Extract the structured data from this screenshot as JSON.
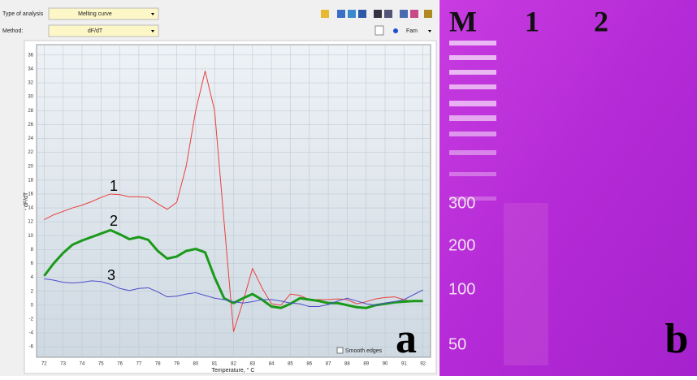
{
  "software": {
    "analysis_label": "Type of analysis",
    "analysis_value": "Melting curve",
    "method_label": "Method:",
    "method_value": "dF/dT",
    "channel": "Fam",
    "smooth_edges": "Smooth edges"
  },
  "chart_data": {
    "type": "line",
    "y_label": "- dF/dT",
    "x_label": "Temperature, ° C",
    "x": [
      72,
      72.5,
      73,
      73.5,
      74,
      74.5,
      75,
      75.5,
      76,
      76.5,
      77,
      77.5,
      78,
      78.5,
      79,
      79.5,
      80,
      80.5,
      81,
      81.5,
      82,
      82.5,
      83,
      83.5,
      84,
      84.5,
      85,
      85.5,
      86,
      86.5,
      87,
      87.5,
      88,
      88.5,
      89,
      89.5,
      90,
      90.5,
      91,
      91.5,
      92
    ],
    "series": [
      {
        "name": "1",
        "color": "#e8413c",
        "width": 1,
        "values": [
          12.3,
          13,
          13.5,
          14,
          14.4,
          14.9,
          15.5,
          16,
          15.9,
          15.6,
          15.6,
          15.5,
          14.6,
          13.8,
          14.8,
          20,
          28,
          33.7,
          28,
          12,
          -3.8,
          0.5,
          5.3,
          2.5,
          0.2,
          0,
          1.6,
          1.4,
          0.8,
          0.8,
          0.8,
          0.9,
          0.8,
          0.2,
          0.5,
          0.9,
          1.1,
          1.2,
          0.8,
          0.5,
          0.5
        ]
      },
      {
        "name": "2",
        "color": "#1a9a1a",
        "width": 3,
        "values": [
          4.2,
          6,
          7.5,
          8.7,
          9.3,
          9.8,
          10.3,
          10.8,
          10.2,
          9.5,
          9.8,
          9.4,
          7.8,
          6.7,
          7,
          7.8,
          8.1,
          7.6,
          4,
          1,
          0.3,
          1,
          1.6,
          0.8,
          -0.2,
          -0.4,
          0.2,
          1,
          0.8,
          0.6,
          0.3,
          0.3,
          0,
          -0.3,
          -0.4,
          0,
          0.2,
          0.4,
          0.5,
          0.6,
          0.6
        ]
      },
      {
        "name": "3",
        "color": "#4a4ec8",
        "width": 1,
        "values": [
          3.8,
          3.6,
          3.3,
          3.2,
          3.3,
          3.5,
          3.4,
          3,
          2.4,
          2.1,
          2.4,
          2.5,
          1.9,
          1.2,
          1.3,
          1.6,
          1.8,
          1.4,
          1,
          0.8,
          0.5,
          0.3,
          0.5,
          0.8,
          0.8,
          0.6,
          0.3,
          0.2,
          -0.2,
          -0.2,
          0.1,
          0.6,
          1,
          0.6,
          0.2,
          0,
          0.3,
          0.5,
          0.8,
          1.5,
          2.2
        ]
      }
    ],
    "xlim": [
      71.6,
      92.4
    ],
    "ylim": [
      -7.5,
      37.5
    ],
    "xticks": [
      72,
      73,
      74,
      75,
      76,
      77,
      78,
      79,
      80,
      81,
      82,
      83,
      84,
      85,
      86,
      87,
      88,
      89,
      90,
      91,
      92
    ],
    "yticks": [
      -6,
      -4,
      -2,
      0,
      2,
      4,
      6,
      8,
      10,
      12,
      14,
      16,
      18,
      20,
      22,
      24,
      26,
      28,
      30,
      32,
      34,
      36
    ],
    "grid": true,
    "panel_label": "a"
  },
  "gel": {
    "lanes": [
      "M",
      "1",
      "2"
    ],
    "ladder": [
      "300",
      "200",
      "100",
      "50"
    ],
    "panel_label": "b"
  }
}
